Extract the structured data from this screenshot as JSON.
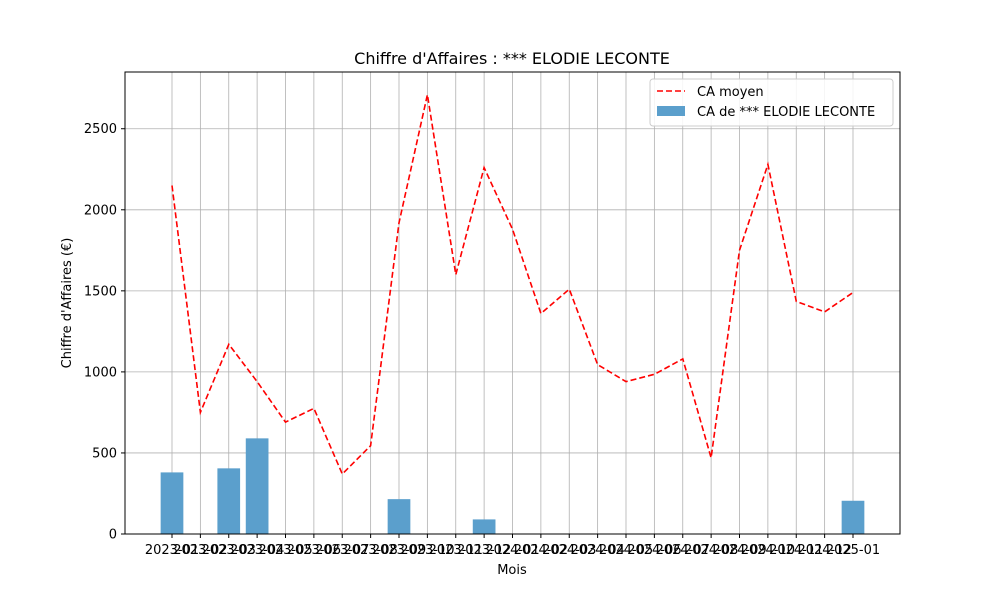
{
  "chart_data": {
    "type": "bar",
    "title": "Chiffre d'Affaires : *** ELODIE LECONTE",
    "xlabel": "Mois",
    "ylabel": "Chiffre d'Affaires (€)",
    "ylim": [
      0,
      2850
    ],
    "yticks": [
      0,
      500,
      1000,
      1500,
      2000,
      2500
    ],
    "grid": true,
    "legend_position": "top-right",
    "categories": [
      "2023-01",
      "2023-02",
      "2023-03",
      "2023-04",
      "2023-05",
      "2023-06",
      "2023-07",
      "2023-08",
      "2023-09",
      "2023-10",
      "2023-11",
      "2023-12",
      "2024-01",
      "2024-02",
      "2024-03",
      "2024-04",
      "2024-05",
      "2024-06",
      "2024-07",
      "2024-08",
      "2024-09",
      "2024-10",
      "2024-11",
      "2024-12",
      "2025-01"
    ],
    "series": [
      {
        "name": "CA moyen",
        "kind": "line",
        "style": "dashed",
        "color": "#ff0000",
        "values": [
          2150,
          750,
          1170,
          940,
          690,
          775,
          370,
          545,
          1920,
          2710,
          1600,
          2260,
          1880,
          1360,
          1510,
          1045,
          940,
          985,
          1080,
          470,
          1750,
          2280,
          1435,
          1370,
          1490
        ]
      },
      {
        "name": "CA de *** ELODIE LECONTE",
        "kind": "bar",
        "color": "#5b9fcc",
        "values": [
          380,
          0,
          405,
          590,
          0,
          0,
          0,
          0,
          215,
          0,
          0,
          90,
          0,
          0,
          0,
          0,
          0,
          0,
          0,
          0,
          0,
          0,
          0,
          0,
          205
        ]
      }
    ]
  }
}
